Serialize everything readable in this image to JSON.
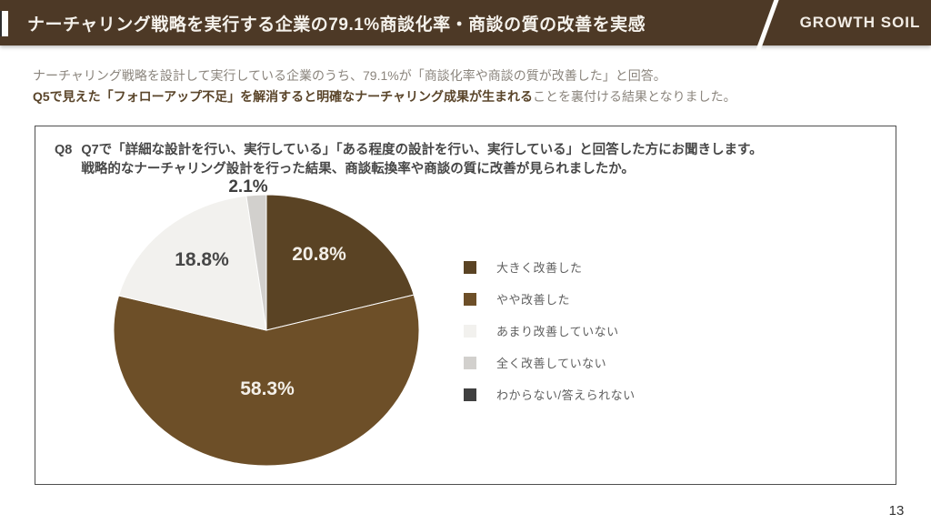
{
  "header": {
    "title": "ナーチャリング戦略を実行する企業の79.1%商談化率・商談の質の改善を実感",
    "brand": "GROWTH SOIL",
    "bg_color": "#4d3926",
    "text_color": "#f5f2ec"
  },
  "intro": {
    "line1": "ナーチャリング戦略を設計して実行している企業のうち、79.1%が「商談化率や商談の質が改善した」と回答。",
    "line2_highlight": "Q5で見えた「フォローアップ不足」を解消すると明確なナーチャリング成果が生まれる",
    "line2_rest": "ことを裏付ける結果となりました。"
  },
  "question": {
    "label": "Q8",
    "line1": "Q7で「詳細な設計を行い、実行している」「ある程度の設計を行い、実行している」と回答した方にお聞きします。",
    "line2": "戦略的なナーチャリング設計を行った結果、商談転換率や商談の質に改善が見られましたか。"
  },
  "chart_data": {
    "type": "pie",
    "title": "戦略的なナーチャリング設計を行った結果、商談転換率や商談の質に改善が見られましたか。",
    "direction": "clockwise",
    "start_angle_deg": 0,
    "legend_position": "right",
    "slices": [
      {
        "label": "大きく改善した",
        "value": 20.8,
        "pct_text": "20.8%",
        "color": "#5a4324",
        "label_color": "#f3efe8"
      },
      {
        "label": "やや改善した",
        "value": 58.3,
        "pct_text": "58.3%",
        "color": "#6d4f28",
        "label_color": "#f3efe8"
      },
      {
        "label": "あまり改善していない",
        "value": 18.8,
        "pct_text": "18.8%",
        "color": "#f2f1ee",
        "label_color": "#474747"
      },
      {
        "label": "全く改善していない",
        "value": 2.1,
        "pct_text": "2.1%",
        "color": "#d2d0cd",
        "label_color": "#3f3f3f"
      },
      {
        "label": "わからない/答えられない",
        "value": 0,
        "pct_text": "",
        "color": "#404040",
        "label_color": "#474747"
      }
    ]
  },
  "page": {
    "number": "13"
  }
}
